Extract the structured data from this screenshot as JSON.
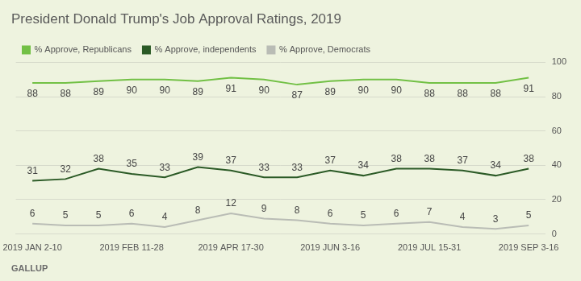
{
  "chart_data": {
    "type": "line",
    "title": "President Donald Trump's Job Approval Ratings, 2019",
    "source": "GALLUP",
    "categories": [
      "2019 JAN 2-10",
      null,
      null,
      "2019 FEB 11-28",
      null,
      null,
      "2019 APR 17-30",
      null,
      null,
      "2019 JUN 3-16",
      null,
      null,
      "2019 JUL 15-31",
      null,
      null,
      "2019 SEP 3-16"
    ],
    "series": [
      {
        "name": "% Approve, Republicans",
        "color": "#72c045",
        "values": [
          88,
          88,
          89,
          90,
          90,
          89,
          91,
          90,
          87,
          89,
          90,
          90,
          88,
          88,
          88,
          91
        ]
      },
      {
        "name": "% Approve, independents",
        "color": "#2b5a26",
        "values": [
          31,
          32,
          38,
          35,
          33,
          39,
          37,
          33,
          33,
          37,
          34,
          38,
          38,
          37,
          34,
          38
        ]
      },
      {
        "name": "% Approve, Democrats",
        "color": "#b9bcb5",
        "values": [
          6,
          5,
          5,
          6,
          4,
          8,
          12,
          9,
          8,
          6,
          5,
          6,
          7,
          4,
          3,
          5
        ]
      }
    ],
    "ylim": [
      0,
      100
    ],
    "yticks": [
      0,
      20,
      40,
      60,
      80,
      100
    ],
    "grid": true,
    "legend": "top-left",
    "data_labels": true
  }
}
